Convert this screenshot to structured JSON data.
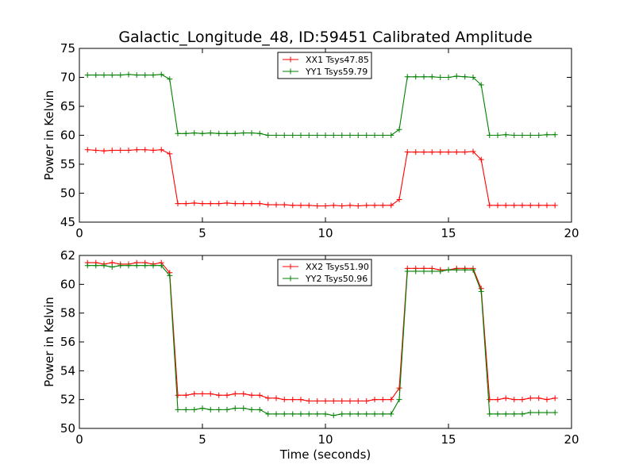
{
  "chart_data": [
    {
      "type": "line",
      "title": "Galactic_Longitude_48, ID:59451 Calibrated Amplitude",
      "xlabel": "",
      "ylabel": "Power in Kelvin",
      "xlim": [
        0,
        20
      ],
      "ylim": [
        45,
        75
      ],
      "xticks": [
        0,
        5,
        10,
        15,
        20
      ],
      "yticks": [
        45,
        50,
        55,
        60,
        65,
        70,
        75
      ],
      "grid": false,
      "legend": "top-center",
      "x": [
        0.33,
        0.67,
        1.0,
        1.33,
        1.67,
        2.0,
        2.33,
        2.67,
        3.0,
        3.33,
        3.67,
        4.0,
        4.33,
        4.67,
        5.0,
        5.33,
        5.67,
        6.0,
        6.33,
        6.67,
        7.0,
        7.33,
        7.67,
        8.0,
        8.33,
        8.67,
        9.0,
        9.33,
        9.67,
        10.0,
        10.33,
        10.67,
        11.0,
        11.33,
        11.67,
        12.0,
        12.33,
        12.67,
        13.0,
        13.33,
        13.67,
        14.0,
        14.33,
        14.67,
        15.0,
        15.33,
        15.67,
        16.0,
        16.33,
        16.67,
        17.0,
        17.33,
        17.67,
        18.0,
        18.33,
        18.67,
        19.0,
        19.33
      ],
      "series": [
        {
          "name": "XX1 Tsys47.85",
          "color": "#ff0000",
          "values": [
            57.5,
            57.4,
            57.3,
            57.4,
            57.4,
            57.4,
            57.5,
            57.5,
            57.4,
            57.5,
            56.8,
            48.2,
            48.2,
            48.3,
            48.2,
            48.2,
            48.2,
            48.3,
            48.2,
            48.2,
            48.2,
            48.2,
            48.0,
            48.0,
            48.0,
            47.9,
            47.9,
            47.9,
            47.8,
            47.8,
            47.9,
            47.8,
            47.9,
            47.8,
            47.9,
            47.9,
            47.9,
            47.9,
            48.9,
            57.1,
            57.1,
            57.1,
            57.1,
            57.1,
            57.1,
            57.1,
            57.1,
            57.2,
            55.8,
            47.9,
            47.9,
            47.9,
            47.9,
            47.9,
            47.9,
            47.9,
            47.9,
            47.9
          ]
        },
        {
          "name": "YY1 Tsys59.79",
          "color": "#008000",
          "values": [
            70.4,
            70.4,
            70.4,
            70.4,
            70.4,
            70.5,
            70.4,
            70.4,
            70.4,
            70.5,
            69.7,
            60.3,
            60.3,
            60.4,
            60.3,
            60.4,
            60.3,
            60.3,
            60.3,
            60.4,
            60.4,
            60.3,
            60.0,
            60.0,
            60.0,
            60.0,
            60.0,
            60.0,
            60.0,
            60.0,
            60.0,
            60.0,
            60.0,
            60.0,
            60.0,
            60.0,
            60.0,
            60.0,
            61.0,
            70.1,
            70.1,
            70.1,
            70.1,
            70.0,
            70.0,
            70.2,
            70.1,
            70.0,
            68.7,
            60.0,
            60.0,
            60.1,
            60.0,
            60.0,
            60.0,
            60.0,
            60.1,
            60.1
          ]
        }
      ]
    },
    {
      "type": "line",
      "title": "",
      "xlabel": "Time (seconds)",
      "ylabel": "Power in Kelvin",
      "xlim": [
        0,
        20
      ],
      "ylim": [
        50,
        62
      ],
      "xticks": [
        0,
        5,
        10,
        15,
        20
      ],
      "yticks": [
        50,
        52,
        54,
        56,
        58,
        60,
        62
      ],
      "grid": false,
      "legend": "top-center",
      "x": [
        0.33,
        0.67,
        1.0,
        1.33,
        1.67,
        2.0,
        2.33,
        2.67,
        3.0,
        3.33,
        3.67,
        4.0,
        4.33,
        4.67,
        5.0,
        5.33,
        5.67,
        6.0,
        6.33,
        6.67,
        7.0,
        7.33,
        7.67,
        8.0,
        8.33,
        8.67,
        9.0,
        9.33,
        9.67,
        10.0,
        10.33,
        10.67,
        11.0,
        11.33,
        11.67,
        12.0,
        12.33,
        12.67,
        13.0,
        13.33,
        13.67,
        14.0,
        14.33,
        14.67,
        15.0,
        15.33,
        15.67,
        16.0,
        16.33,
        16.67,
        17.0,
        17.33,
        17.67,
        18.0,
        18.33,
        18.67,
        19.0,
        19.33
      ],
      "series": [
        {
          "name": "XX2 Tsys51.90",
          "color": "#ff0000",
          "values": [
            61.5,
            61.5,
            61.4,
            61.5,
            61.4,
            61.4,
            61.5,
            61.5,
            61.4,
            61.5,
            60.8,
            52.3,
            52.3,
            52.4,
            52.4,
            52.4,
            52.3,
            52.3,
            52.4,
            52.4,
            52.3,
            52.3,
            52.1,
            52.1,
            52.0,
            52.0,
            52.0,
            51.9,
            51.9,
            51.9,
            51.9,
            51.9,
            51.9,
            51.9,
            51.9,
            52.0,
            52.0,
            52.0,
            52.8,
            61.1,
            61.1,
            61.1,
            61.1,
            61.0,
            61.0,
            61.1,
            61.1,
            61.1,
            59.7,
            52.0,
            52.0,
            52.1,
            52.0,
            52.0,
            52.1,
            52.1,
            52.0,
            52.1
          ]
        },
        {
          "name": "YY2 Tsys50.96",
          "color": "#008000",
          "values": [
            61.3,
            61.3,
            61.3,
            61.2,
            61.3,
            61.3,
            61.3,
            61.3,
            61.3,
            61.3,
            60.6,
            51.3,
            51.3,
            51.3,
            51.4,
            51.3,
            51.3,
            51.3,
            51.4,
            51.4,
            51.3,
            51.3,
            51.0,
            51.0,
            51.0,
            51.0,
            51.0,
            51.0,
            51.0,
            51.0,
            50.9,
            51.0,
            51.0,
            51.0,
            51.0,
            51.0,
            51.0,
            51.0,
            52.0,
            60.9,
            60.9,
            60.9,
            60.9,
            60.9,
            61.0,
            61.0,
            61.0,
            61.0,
            59.5,
            51.0,
            51.0,
            51.0,
            51.0,
            51.0,
            51.1,
            51.1,
            51.1,
            51.1
          ]
        }
      ]
    }
  ]
}
